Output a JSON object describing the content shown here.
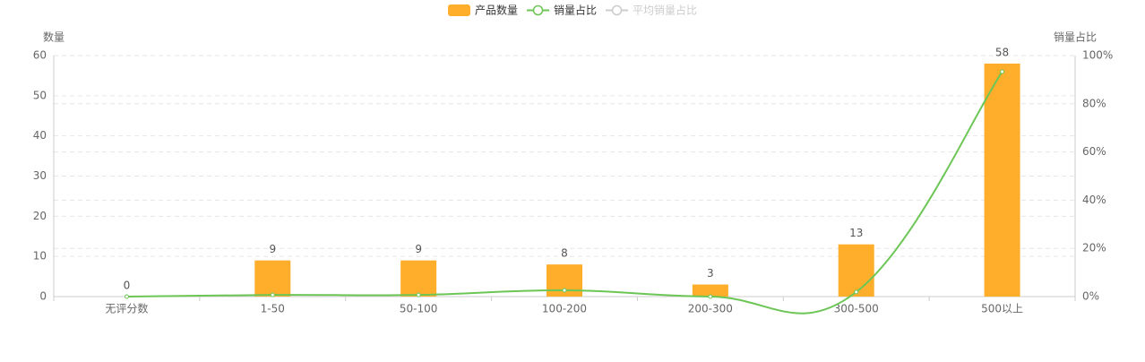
{
  "chart_data": {
    "type": "bar-line",
    "categories": [
      "无评分数",
      "1-50",
      "50-100",
      "100-200",
      "200-300",
      "300-500",
      "500以上"
    ],
    "series": [
      {
        "name": "产品数量",
        "color": "#ffae2c",
        "type": "bar",
        "values": [
          0,
          9,
          9,
          8,
          3,
          13,
          58
        ]
      },
      {
        "name": "销量占比",
        "color": "#6cc655",
        "type": "line",
        "axis": "y2",
        "values": [
          0,
          0.7,
          0.7,
          2.6,
          0,
          1.9,
          93.3
        ]
      }
    ],
    "hidden_series": [
      {
        "name": "平均销量占比",
        "color": "#cccccc"
      }
    ],
    "ylabel": "数量",
    "y2label": "销量占比",
    "ylim": [
      0,
      60
    ],
    "yticks": [
      0,
      10,
      20,
      30,
      40,
      50,
      60
    ],
    "y2lim": [
      0,
      100
    ],
    "y2ticks": [
      {
        "value": 0,
        "label": "0%"
      },
      {
        "value": 20,
        "label": "20%"
      },
      {
        "value": 40,
        "label": "40%"
      },
      {
        "value": 60,
        "label": "60%"
      },
      {
        "value": 80,
        "label": "80%"
      },
      {
        "value": 100,
        "label": "100%"
      }
    ],
    "grid": true,
    "legend": "top"
  }
}
